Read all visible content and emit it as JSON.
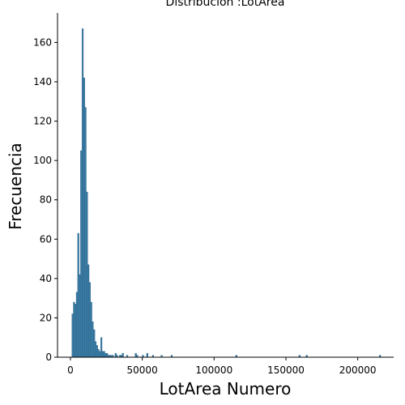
{
  "chart_data": {
    "type": "bar",
    "title": "Distribución :LotArea",
    "xlabel": "LotArea Numero",
    "ylabel": "Frecuencia",
    "xlim": [
      -9000,
      225000
    ],
    "ylim": [
      0,
      175
    ],
    "xticks": [
      0,
      50000,
      100000,
      150000,
      200000
    ],
    "yticks": [
      0,
      20,
      40,
      60,
      80,
      100,
      120,
      140,
      160
    ],
    "bin_width": 1000,
    "grid": false,
    "legend": "none",
    "bar_color": "#3b7ea8",
    "bar_edge_color": "#2a5f80",
    "series": [
      {
        "bins": [
          {
            "x0": 1000,
            "count": 22
          },
          {
            "x0": 2000,
            "count": 28
          },
          {
            "x0": 3000,
            "count": 27
          },
          {
            "x0": 4000,
            "count": 33
          },
          {
            "x0": 5000,
            "count": 63
          },
          {
            "x0": 6000,
            "count": 42
          },
          {
            "x0": 7000,
            "count": 105
          },
          {
            "x0": 8000,
            "count": 167
          },
          {
            "x0": 9000,
            "count": 142
          },
          {
            "x0": 10000,
            "count": 127
          },
          {
            "x0": 11000,
            "count": 84
          },
          {
            "x0": 12000,
            "count": 47
          },
          {
            "x0": 13000,
            "count": 38
          },
          {
            "x0": 14000,
            "count": 28
          },
          {
            "x0": 15000,
            "count": 18
          },
          {
            "x0": 16000,
            "count": 14
          },
          {
            "x0": 17000,
            "count": 8
          },
          {
            "x0": 18000,
            "count": 6
          },
          {
            "x0": 19000,
            "count": 4
          },
          {
            "x0": 20000,
            "count": 3
          },
          {
            "x0": 21000,
            "count": 10
          },
          {
            "x0": 22000,
            "count": 3
          },
          {
            "x0": 23000,
            "count": 3
          },
          {
            "x0": 24000,
            "count": 2
          },
          {
            "x0": 25000,
            "count": 2
          },
          {
            "x0": 26000,
            "count": 1
          },
          {
            "x0": 27000,
            "count": 1
          },
          {
            "x0": 28000,
            "count": 1
          },
          {
            "x0": 29000,
            "count": 1
          },
          {
            "x0": 31000,
            "count": 2
          },
          {
            "x0": 32000,
            "count": 1
          },
          {
            "x0": 34000,
            "count": 1
          },
          {
            "x0": 35000,
            "count": 1
          },
          {
            "x0": 36000,
            "count": 2
          },
          {
            "x0": 39000,
            "count": 1
          },
          {
            "x0": 45000,
            "count": 2
          },
          {
            "x0": 46000,
            "count": 1
          },
          {
            "x0": 50000,
            "count": 1
          },
          {
            "x0": 53000,
            "count": 2
          },
          {
            "x0": 57000,
            "count": 1
          },
          {
            "x0": 63000,
            "count": 1
          },
          {
            "x0": 70000,
            "count": 1
          },
          {
            "x0": 115000,
            "count": 1
          },
          {
            "x0": 159000,
            "count": 1
          },
          {
            "x0": 164000,
            "count": 1
          },
          {
            "x0": 215000,
            "count": 1
          }
        ]
      }
    ]
  }
}
